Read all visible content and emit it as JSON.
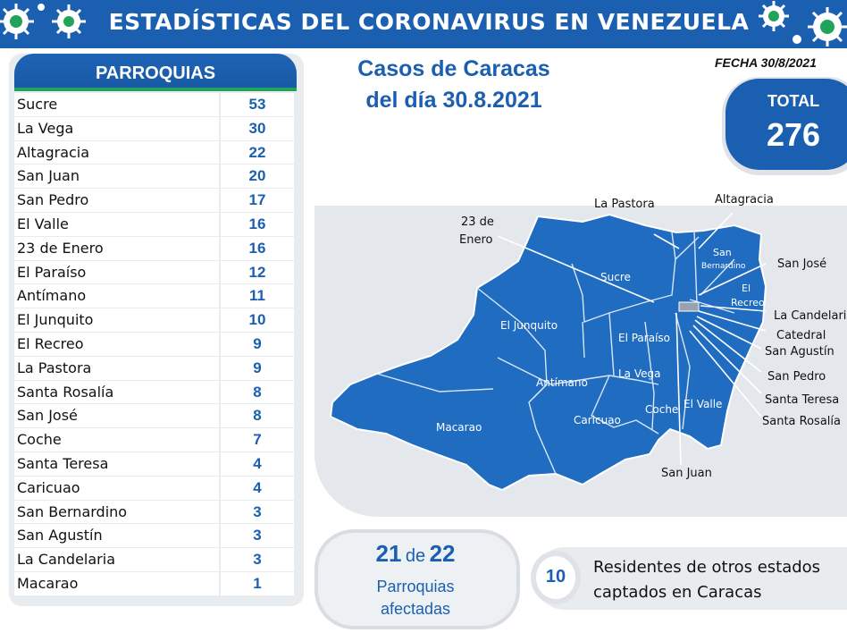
{
  "header": {
    "title": "ESTADÍSTICAS DEL CORONAVIRUS EN VENEZUELA"
  },
  "table": {
    "heading": "PARROQUIAS",
    "rows": [
      {
        "name": "Sucre",
        "value": "53"
      },
      {
        "name": "La Vega",
        "value": "30"
      },
      {
        "name": "Altagracia",
        "value": "22"
      },
      {
        "name": "San Juan",
        "value": "20"
      },
      {
        "name": "San Pedro",
        "value": "17"
      },
      {
        "name": "El Valle",
        "value": "16"
      },
      {
        "name": "23 de Enero",
        "value": "16"
      },
      {
        "name": "El Paraíso",
        "value": "12"
      },
      {
        "name": "Antímano",
        "value": "11"
      },
      {
        "name": "El Junquito",
        "value": "10"
      },
      {
        "name": "El Recreo",
        "value": "9"
      },
      {
        "name": "La Pastora",
        "value": "9"
      },
      {
        "name": "Santa Rosalía",
        "value": "8"
      },
      {
        "name": "San José",
        "value": "8"
      },
      {
        "name": "Coche",
        "value": "7"
      },
      {
        "name": "Santa Teresa",
        "value": "4"
      },
      {
        "name": "Caricuao",
        "value": "4"
      },
      {
        "name": "San Bernardino",
        "value": "3"
      },
      {
        "name": "San Agustín",
        "value": "3"
      },
      {
        "name": "La Candelaria",
        "value": "3"
      },
      {
        "name": "Macarao",
        "value": "1"
      }
    ]
  },
  "title": {
    "line1": "Casos de Caracas",
    "line2": "del día 30.8.2021"
  },
  "fecha": "FECHA 30/8/2021",
  "total": {
    "label": "TOTAL",
    "value": "276"
  },
  "map": {
    "inner_labels": {
      "sucre": "Sucre",
      "el_junquito": "El Junquito",
      "el_paraiso": "El Paraíso",
      "antimano": "Antímano",
      "la_vega": "La Vega",
      "macarao": "Macarao",
      "caricuao": "Caricuao",
      "coche": "Coche",
      "el_valle": "El Valle",
      "san_bernardino_1": "San",
      "san_bernardino_2": "Bernardino",
      "el_recreo_1": "El",
      "el_recreo_2": "Recreo"
    },
    "callouts": {
      "la_pastora": "La Pastora",
      "altagracia": "Altagracia",
      "enero_1": "23 de",
      "enero_2": "Enero",
      "san_jose": "San José",
      "la_candelaria": "La Candelaria",
      "catedral": "Catedral",
      "san_agustin": "San Agustín",
      "san_pedro": "San Pedro",
      "santa_teresa": "Santa Teresa",
      "santa_rosalia": "Santa Rosalía",
      "san_juan": "San Juan"
    },
    "fill_color": "#1f6cc1"
  },
  "parroquias": {
    "affected": "21",
    "connector": "de",
    "total": "22",
    "line1": "Parroquias",
    "line2": "afectadas"
  },
  "residentes": {
    "count": "10",
    "line1": "Residentes de otros estados",
    "line2": "captados en Caracas"
  },
  "colors": {
    "brand_blue": "#1b5fb0",
    "accent_green": "#22a35a"
  }
}
